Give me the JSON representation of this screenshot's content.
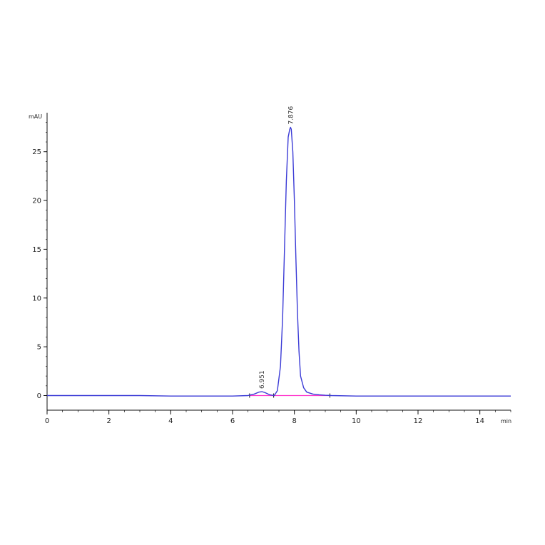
{
  "chart_data": {
    "type": "line",
    "xlabel": "min",
    "ylabel": "mAU",
    "xlim": [
      0,
      15
    ],
    "ylim": [
      -1.5,
      29
    ],
    "x_ticks": [
      0,
      2,
      4,
      6,
      8,
      10,
      12,
      14
    ],
    "y_ticks": [
      0,
      5,
      10,
      15,
      20,
      25
    ],
    "grid": false,
    "peaks": [
      {
        "label": "6.951",
        "rt": 6.951,
        "height": 0.4
      },
      {
        "label": "7.876",
        "rt": 7.876,
        "height": 27.5
      }
    ],
    "integration_baseline": {
      "x_start": 6.55,
      "x_end": 9.15,
      "y": 0.0
    },
    "series": [
      {
        "x": [
          0,
          1,
          2,
          3,
          4,
          5,
          6,
          6.5,
          6.7,
          6.85,
          6.951,
          7.05,
          7.2,
          7.35,
          7.45,
          7.55,
          7.62,
          7.68,
          7.74,
          7.8,
          7.85,
          7.876,
          7.9,
          7.95,
          8.0,
          8.05,
          8.1,
          8.15,
          8.2,
          8.3,
          8.4,
          8.6,
          8.8,
          9.0,
          9.2,
          10,
          11,
          12,
          13,
          14,
          15
        ],
        "y": [
          0.0,
          0.0,
          0.0,
          0.0,
          -0.05,
          -0.05,
          -0.05,
          0.0,
          0.15,
          0.35,
          0.4,
          0.3,
          0.08,
          0.0,
          0.5,
          3.0,
          8.0,
          15.0,
          22.0,
          26.5,
          27.3,
          27.5,
          27.3,
          25.0,
          20.0,
          14.0,
          8.5,
          4.5,
          2.0,
          0.8,
          0.35,
          0.15,
          0.08,
          0.03,
          0.0,
          -0.05,
          -0.05,
          -0.05,
          -0.05,
          -0.05,
          -0.05
        ]
      }
    ],
    "colors": {
      "trace": "#3b3bd6",
      "baseline": "#ff33cc",
      "axis": "#111111"
    }
  }
}
